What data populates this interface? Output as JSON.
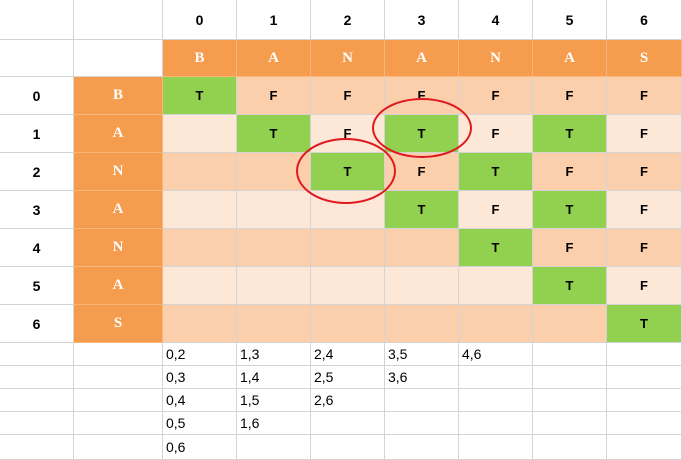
{
  "column_headers": [
    "0",
    "1",
    "2",
    "3",
    "4",
    "5",
    "6"
  ],
  "row_headers": [
    "0",
    "1",
    "2",
    "3",
    "4",
    "5",
    "6"
  ],
  "word": [
    "B",
    "A",
    "N",
    "A",
    "N",
    "A",
    "S"
  ],
  "matrix": [
    [
      "T",
      "F",
      "F",
      "F",
      "F",
      "F",
      "F"
    ],
    [
      "",
      "T",
      "F",
      "T",
      "F",
      "T",
      "F"
    ],
    [
      "",
      "",
      "T",
      "F",
      "T",
      "F",
      "F"
    ],
    [
      "",
      "",
      "",
      "T",
      "F",
      "T",
      "F"
    ],
    [
      "",
      "",
      "",
      "",
      "T",
      "F",
      "F"
    ],
    [
      "",
      "",
      "",
      "",
      "",
      "T",
      "F"
    ],
    [
      "",
      "",
      "",
      "",
      "",
      "",
      "T"
    ]
  ],
  "pairs": [
    [
      "0,2",
      "1,3",
      "2,4",
      "3,5",
      "4,6",
      "",
      ""
    ],
    [
      "0,3",
      "1,4",
      "2,5",
      "3,6",
      "",
      "",
      ""
    ],
    [
      "0,4",
      "1,5",
      "2,6",
      "",
      "",
      "",
      ""
    ],
    [
      "0,5",
      "1,6",
      "",
      "",
      "",
      "",
      ""
    ],
    [
      "0,6",
      "",
      "",
      "",
      "",
      "",
      ""
    ]
  ],
  "colors": {
    "header_orange": "#f59c4e",
    "true_green": "#92d050",
    "peach": "#fbcfab",
    "light_peach": "#fde7d6",
    "highlight_circle": "#e0191e"
  }
}
